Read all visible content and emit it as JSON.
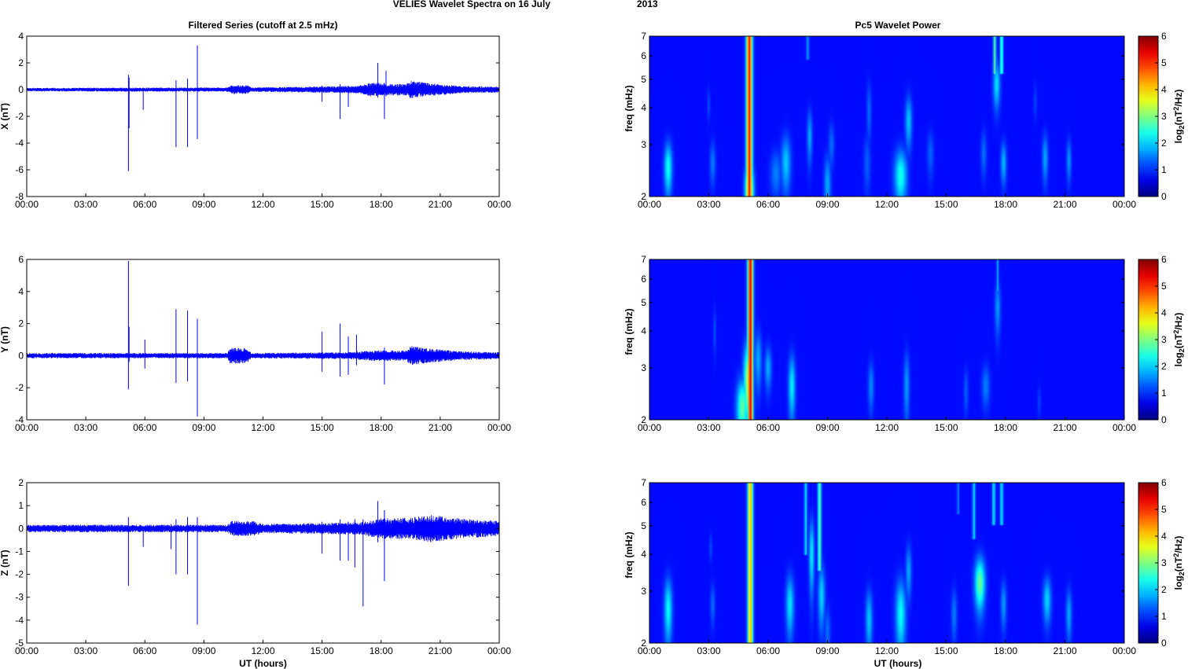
{
  "figure": {
    "title_main": "VELIES Wavelet Spectra on 16 July",
    "title_year": "2013"
  },
  "chart_data": [
    {
      "type": "line",
      "panel": "X",
      "title": "Filtered Series (cutoff at 2.5 mHz)",
      "xlabel": "",
      "ylabel": "X (nT)",
      "xlim": [
        "00:00",
        "24:00"
      ],
      "ylim": [
        -8,
        4
      ],
      "x_ticks": [
        "00:00",
        "03:00",
        "06:00",
        "09:00",
        "12:00",
        "15:00",
        "18:00",
        "21:00",
        "00:00"
      ],
      "y_ticks": [
        -8,
        -6,
        -4,
        -2,
        0,
        2,
        4
      ],
      "color": "#0000ff",
      "noise_profile": [
        [
          0,
          0.12
        ],
        [
          10.2,
          0.15
        ],
        [
          10.4,
          0.3
        ],
        [
          11.2,
          0.3
        ],
        [
          11.4,
          0.15
        ],
        [
          16.8,
          0.25
        ],
        [
          17.6,
          0.5
        ],
        [
          18.4,
          0.4
        ],
        [
          19.3,
          0.4
        ],
        [
          19.5,
          0.6
        ],
        [
          20.5,
          0.45
        ],
        [
          22,
          0.25
        ],
        [
          24,
          0.2
        ]
      ],
      "spikes": [
        {
          "t": "05:10",
          "min": -6.1,
          "max": 1.1
        },
        {
          "t": "05:12",
          "min": -2.9,
          "max": 0.9
        },
        {
          "t": "05:55",
          "min": -1.5,
          "max": 0.1
        },
        {
          "t": "07:35",
          "min": -4.3,
          "max": 0.7
        },
        {
          "t": "08:10",
          "min": -4.3,
          "max": 0.8
        },
        {
          "t": "08:40",
          "min": -3.7,
          "max": 3.3
        },
        {
          "t": "15:00",
          "min": -0.9,
          "max": 0.3
        },
        {
          "t": "15:55",
          "min": -2.2,
          "max": 0.4
        },
        {
          "t": "16:20",
          "min": -1.3,
          "max": 0.3
        },
        {
          "t": "17:50",
          "min": -0.6,
          "max": 2.0
        },
        {
          "t": "18:10",
          "min": -2.2,
          "max": 0.5
        },
        {
          "t": "18:15",
          "min": -0.5,
          "max": 1.4
        }
      ]
    },
    {
      "type": "line",
      "panel": "Y",
      "title": "",
      "xlabel": "",
      "ylabel": "Y (nT)",
      "xlim": [
        "00:00",
        "24:00"
      ],
      "ylim": [
        -4,
        6
      ],
      "x_ticks": [
        "00:00",
        "03:00",
        "06:00",
        "09:00",
        "12:00",
        "15:00",
        "18:00",
        "21:00",
        "00:00"
      ],
      "y_ticks": [
        -4,
        -2,
        0,
        2,
        4,
        6
      ],
      "color": "#0000ff",
      "noise_profile": [
        [
          0,
          0.15
        ],
        [
          10.2,
          0.15
        ],
        [
          10.3,
          0.45
        ],
        [
          11.2,
          0.45
        ],
        [
          11.4,
          0.15
        ],
        [
          16.5,
          0.2
        ],
        [
          17.5,
          0.3
        ],
        [
          19.3,
          0.3
        ],
        [
          19.5,
          0.55
        ],
        [
          20.5,
          0.4
        ],
        [
          22,
          0.25
        ],
        [
          24,
          0.2
        ]
      ],
      "spikes": [
        {
          "t": "05:10",
          "min": -2.1,
          "max": 5.9
        },
        {
          "t": "05:12",
          "min": -0.4,
          "max": 1.8
        },
        {
          "t": "06:00",
          "min": -0.8,
          "max": 1.0
        },
        {
          "t": "07:35",
          "min": -1.7,
          "max": 2.9
        },
        {
          "t": "08:10",
          "min": -1.6,
          "max": 2.8
        },
        {
          "t": "08:40",
          "min": -3.8,
          "max": 2.3
        },
        {
          "t": "15:00",
          "min": -1.0,
          "max": 1.5
        },
        {
          "t": "15:55",
          "min": -1.3,
          "max": 2.0
        },
        {
          "t": "16:20",
          "min": -1.2,
          "max": 1.2
        },
        {
          "t": "16:45",
          "min": -0.6,
          "max": 1.3
        },
        {
          "t": "18:10",
          "min": -1.8,
          "max": 0.5
        }
      ]
    },
    {
      "type": "line",
      "panel": "Z",
      "title": "",
      "xlabel": "UT (hours)",
      "ylabel": "Z (nT)",
      "xlim": [
        "00:00",
        "24:00"
      ],
      "ylim": [
        -5,
        2
      ],
      "x_ticks": [
        "00:00",
        "03:00",
        "06:00",
        "09:00",
        "12:00",
        "15:00",
        "18:00",
        "21:00",
        "00:00"
      ],
      "y_ticks": [
        -5,
        -4,
        -3,
        -2,
        -1,
        0,
        1,
        2
      ],
      "color": "#0000ff",
      "noise_profile": [
        [
          0,
          0.15
        ],
        [
          10.2,
          0.15
        ],
        [
          10.4,
          0.3
        ],
        [
          11.5,
          0.3
        ],
        [
          12,
          0.18
        ],
        [
          17,
          0.25
        ],
        [
          18,
          0.4
        ],
        [
          19.5,
          0.45
        ],
        [
          20.5,
          0.55
        ],
        [
          22,
          0.4
        ],
        [
          24,
          0.3
        ]
      ],
      "spikes": [
        {
          "t": "05:10",
          "min": -2.5,
          "max": 0.5
        },
        {
          "t": "05:55",
          "min": -0.8,
          "max": 0.1
        },
        {
          "t": "07:20",
          "min": -0.9,
          "max": 0.2
        },
        {
          "t": "07:35",
          "min": -2.0,
          "max": 0.4
        },
        {
          "t": "08:10",
          "min": -2.0,
          "max": 0.5
        },
        {
          "t": "08:40",
          "min": -4.2,
          "max": 0.5
        },
        {
          "t": "15:00",
          "min": -1.1,
          "max": 0.3
        },
        {
          "t": "15:55",
          "min": -1.4,
          "max": 0.4
        },
        {
          "t": "16:20",
          "min": -1.4,
          "max": 0.3
        },
        {
          "t": "16:40",
          "min": -1.7,
          "max": 0.4
        },
        {
          "t": "17:05",
          "min": -3.4,
          "max": 0.4
        },
        {
          "t": "17:50",
          "min": -0.6,
          "max": 1.2
        },
        {
          "t": "18:10",
          "min": -2.3,
          "max": 0.8
        }
      ]
    },
    {
      "type": "heatmap",
      "panel": "X",
      "title": "Pc5 Wavelet Power",
      "xlabel": "",
      "ylabel": "freq (mHz)",
      "xlim": [
        "00:00",
        "24:00"
      ],
      "ylim": [
        2,
        7
      ],
      "yscale": "log",
      "x_ticks": [
        "00:00",
        "03:00",
        "06:00",
        "09:00",
        "12:00",
        "15:00",
        "18:00",
        "21:00",
        "00:00"
      ],
      "y_ticks": [
        2,
        3,
        4,
        5,
        6,
        7
      ],
      "colorbar": {
        "label": "log2(nT^2/Hz)",
        "range": [
          0,
          6
        ],
        "ticks": [
          0,
          1,
          2,
          3,
          4,
          5,
          6
        ],
        "colormap": "jet"
      },
      "background_level": 0.5,
      "blobs": [
        {
          "t": 0.95,
          "f": 2.5,
          "dt": 0.14,
          "df": 0.35,
          "level": 2.3
        },
        {
          "t": 3.2,
          "f": 2.6,
          "dt": 0.1,
          "df": 0.3,
          "level": 1.3
        },
        {
          "t": 3.0,
          "f": 4.1,
          "dt": 0.05,
          "df": 0.35,
          "level": 1.0
        },
        {
          "t": 5.05,
          "f": 2.1,
          "dt": 0.14,
          "df": 0.3,
          "level": 4.5
        },
        {
          "t": 6.9,
          "f": 2.6,
          "dt": 0.17,
          "df": 0.4,
          "level": 1.8
        },
        {
          "t": 6.4,
          "f": 2.4,
          "dt": 0.2,
          "df": 0.3,
          "level": 1.3
        },
        {
          "t": 8.1,
          "f": 3.2,
          "dt": 0.09,
          "df": 0.45,
          "level": 1.6
        },
        {
          "t": 9.0,
          "f": 2.2,
          "dt": 0.12,
          "df": 0.35,
          "level": 1.6
        },
        {
          "t": 9.2,
          "f": 3.0,
          "dt": 0.1,
          "df": 0.35,
          "level": 1.2
        },
        {
          "t": 11.1,
          "f": 3.9,
          "dt": 0.08,
          "df": 0.6,
          "level": 1.2
        },
        {
          "t": 11.0,
          "f": 2.6,
          "dt": 0.12,
          "df": 0.4,
          "level": 1.1
        },
        {
          "t": 12.7,
          "f": 2.35,
          "dt": 0.22,
          "df": 0.35,
          "level": 2.3
        },
        {
          "t": 13.1,
          "f": 3.6,
          "dt": 0.12,
          "df": 0.5,
          "level": 1.8
        },
        {
          "t": 14.2,
          "f": 2.8,
          "dt": 0.12,
          "df": 0.35,
          "level": 1.1
        },
        {
          "t": 17.55,
          "f": 4.8,
          "dt": 0.12,
          "df": 0.6,
          "level": 2.0
        },
        {
          "t": 17.9,
          "f": 2.6,
          "dt": 0.1,
          "df": 0.3,
          "level": 1.7
        },
        {
          "t": 16.9,
          "f": 2.8,
          "dt": 0.1,
          "df": 0.35,
          "level": 1.2
        },
        {
          "t": 20.0,
          "f": 2.7,
          "dt": 0.1,
          "df": 0.35,
          "level": 1.6
        },
        {
          "t": 21.2,
          "f": 2.65,
          "dt": 0.08,
          "df": 0.3,
          "level": 1.5
        },
        {
          "t": 19.5,
          "f": 4.2,
          "dt": 0.06,
          "df": 0.4,
          "level": 0.9
        }
      ],
      "streaks": [
        {
          "t": 5.05,
          "f_min": 2.0,
          "f_max": 7.0,
          "width": 0.1,
          "level": 5.6
        },
        {
          "t": 17.45,
          "f_min": 5.2,
          "f_max": 7.0,
          "width": 0.05,
          "level": 2.8
        },
        {
          "t": 17.8,
          "f_min": 5.2,
          "f_max": 7.0,
          "width": 0.05,
          "level": 2.8
        },
        {
          "t": 8.0,
          "f_min": 5.8,
          "f_max": 7.0,
          "width": 0.05,
          "level": 1.5
        }
      ]
    },
    {
      "type": "heatmap",
      "panel": "Y",
      "title": "",
      "xlabel": "",
      "ylabel": "freq (mHz)",
      "xlim": [
        "00:00",
        "24:00"
      ],
      "ylim": [
        2,
        7
      ],
      "yscale": "log",
      "x_ticks": [
        "00:00",
        "03:00",
        "06:00",
        "09:00",
        "12:00",
        "15:00",
        "18:00",
        "21:00",
        "00:00"
      ],
      "y_ticks": [
        2,
        3,
        4,
        5,
        6,
        7
      ],
      "colorbar": {
        "label": "log2(nT^2/Hz)",
        "range": [
          0,
          6
        ],
        "ticks": [
          0,
          1,
          2,
          3,
          4,
          5,
          6
        ],
        "colormap": "jet"
      },
      "background_level": 0.5,
      "blobs": [
        {
          "t": 4.7,
          "f": 2.2,
          "dt": 0.2,
          "df": 0.35,
          "level": 2.8
        },
        {
          "t": 5.0,
          "f": 2.7,
          "dt": 0.16,
          "df": 0.6,
          "level": 3.5
        },
        {
          "t": 5.5,
          "f": 3.2,
          "dt": 0.12,
          "df": 0.5,
          "level": 1.6
        },
        {
          "t": 6.0,
          "f": 3.0,
          "dt": 0.12,
          "df": 0.35,
          "level": 1.6
        },
        {
          "t": 7.2,
          "f": 2.6,
          "dt": 0.12,
          "df": 0.45,
          "level": 2.1
        },
        {
          "t": 11.2,
          "f": 2.6,
          "dt": 0.1,
          "df": 0.35,
          "level": 1.4
        },
        {
          "t": 13.0,
          "f": 2.6,
          "dt": 0.1,
          "df": 0.5,
          "level": 1.5
        },
        {
          "t": 16.0,
          "f": 2.5,
          "dt": 0.08,
          "df": 0.3,
          "level": 1.1
        },
        {
          "t": 17.0,
          "f": 2.6,
          "dt": 0.14,
          "df": 0.3,
          "level": 1.3
        },
        {
          "t": 17.6,
          "f": 4.8,
          "dt": 0.1,
          "df": 0.7,
          "level": 1.5
        },
        {
          "t": 19.7,
          "f": 2.3,
          "dt": 0.06,
          "df": 0.2,
          "level": 0.9
        },
        {
          "t": 3.3,
          "f": 4.0,
          "dt": 0.05,
          "df": 0.5,
          "level": 1.0
        }
      ],
      "streaks": [
        {
          "t": 5.1,
          "f_min": 2.0,
          "f_max": 7.0,
          "width": 0.09,
          "level": 5.8
        },
        {
          "t": 17.6,
          "f_min": 5.5,
          "f_max": 7.0,
          "width": 0.04,
          "level": 1.6
        }
      ]
    },
    {
      "type": "heatmap",
      "panel": "Z",
      "title": "",
      "xlabel": "UT (hours)",
      "ylabel": "freq (mHz)",
      "xlim": [
        "00:00",
        "24:00"
      ],
      "ylim": [
        2,
        7
      ],
      "yscale": "log",
      "x_ticks": [
        "00:00",
        "03:00",
        "06:00",
        "09:00",
        "12:00",
        "15:00",
        "18:00",
        "21:00",
        "00:00"
      ],
      "y_ticks": [
        2,
        3,
        4,
        5,
        6,
        7
      ],
      "colorbar": {
        "label": "log2(nT^2/Hz)",
        "range": [
          0,
          6
        ],
        "ticks": [
          0,
          1,
          2,
          3,
          4,
          5,
          6
        ],
        "colormap": "jet"
      },
      "background_level": 0.5,
      "blobs": [
        {
          "t": 0.95,
          "f": 2.6,
          "dt": 0.14,
          "df": 0.45,
          "level": 2.2
        },
        {
          "t": 3.2,
          "f": 2.7,
          "dt": 0.08,
          "df": 0.3,
          "level": 1.2
        },
        {
          "t": 7.1,
          "f": 2.7,
          "dt": 0.14,
          "df": 0.45,
          "level": 2.0
        },
        {
          "t": 8.2,
          "f": 4.0,
          "dt": 0.09,
          "df": 0.8,
          "level": 2.1
        },
        {
          "t": 8.7,
          "f": 2.9,
          "dt": 0.12,
          "df": 0.5,
          "level": 1.9
        },
        {
          "t": 9.0,
          "f": 2.2,
          "dt": 0.1,
          "df": 0.3,
          "level": 1.2
        },
        {
          "t": 11.1,
          "f": 2.4,
          "dt": 0.12,
          "df": 0.4,
          "level": 1.8
        },
        {
          "t": 12.7,
          "f": 2.5,
          "dt": 0.18,
          "df": 0.5,
          "level": 2.2
        },
        {
          "t": 13.1,
          "f": 3.5,
          "dt": 0.1,
          "df": 0.5,
          "level": 1.6
        },
        {
          "t": 15.4,
          "f": 2.5,
          "dt": 0.1,
          "df": 0.35,
          "level": 1.3
        },
        {
          "t": 16.7,
          "f": 3.2,
          "dt": 0.18,
          "df": 0.45,
          "level": 2.9
        },
        {
          "t": 17.9,
          "f": 2.7,
          "dt": 0.1,
          "df": 0.35,
          "level": 1.5
        },
        {
          "t": 20.1,
          "f": 2.8,
          "dt": 0.14,
          "df": 0.35,
          "level": 1.9
        },
        {
          "t": 21.2,
          "f": 2.5,
          "dt": 0.1,
          "df": 0.35,
          "level": 1.6
        },
        {
          "t": 3.1,
          "f": 4.2,
          "dt": 0.05,
          "df": 0.3,
          "level": 1.0
        }
      ],
      "streaks": [
        {
          "t": 5.1,
          "f_min": 2.0,
          "f_max": 7.0,
          "width": 0.09,
          "level": 4.4
        },
        {
          "t": 7.9,
          "f_min": 4.0,
          "f_max": 7.0,
          "width": 0.05,
          "level": 2.0
        },
        {
          "t": 8.6,
          "f_min": 3.5,
          "f_max": 7.0,
          "width": 0.06,
          "level": 2.8
        },
        {
          "t": 15.6,
          "f_min": 5.5,
          "f_max": 7.0,
          "width": 0.04,
          "level": 1.4
        },
        {
          "t": 16.4,
          "f_min": 4.5,
          "f_max": 7.0,
          "width": 0.05,
          "level": 2.0
        },
        {
          "t": 17.4,
          "f_min": 5.0,
          "f_max": 7.0,
          "width": 0.05,
          "level": 2.2
        },
        {
          "t": 17.8,
          "f_min": 5.0,
          "f_max": 7.0,
          "width": 0.05,
          "level": 2.2
        }
      ]
    }
  ]
}
